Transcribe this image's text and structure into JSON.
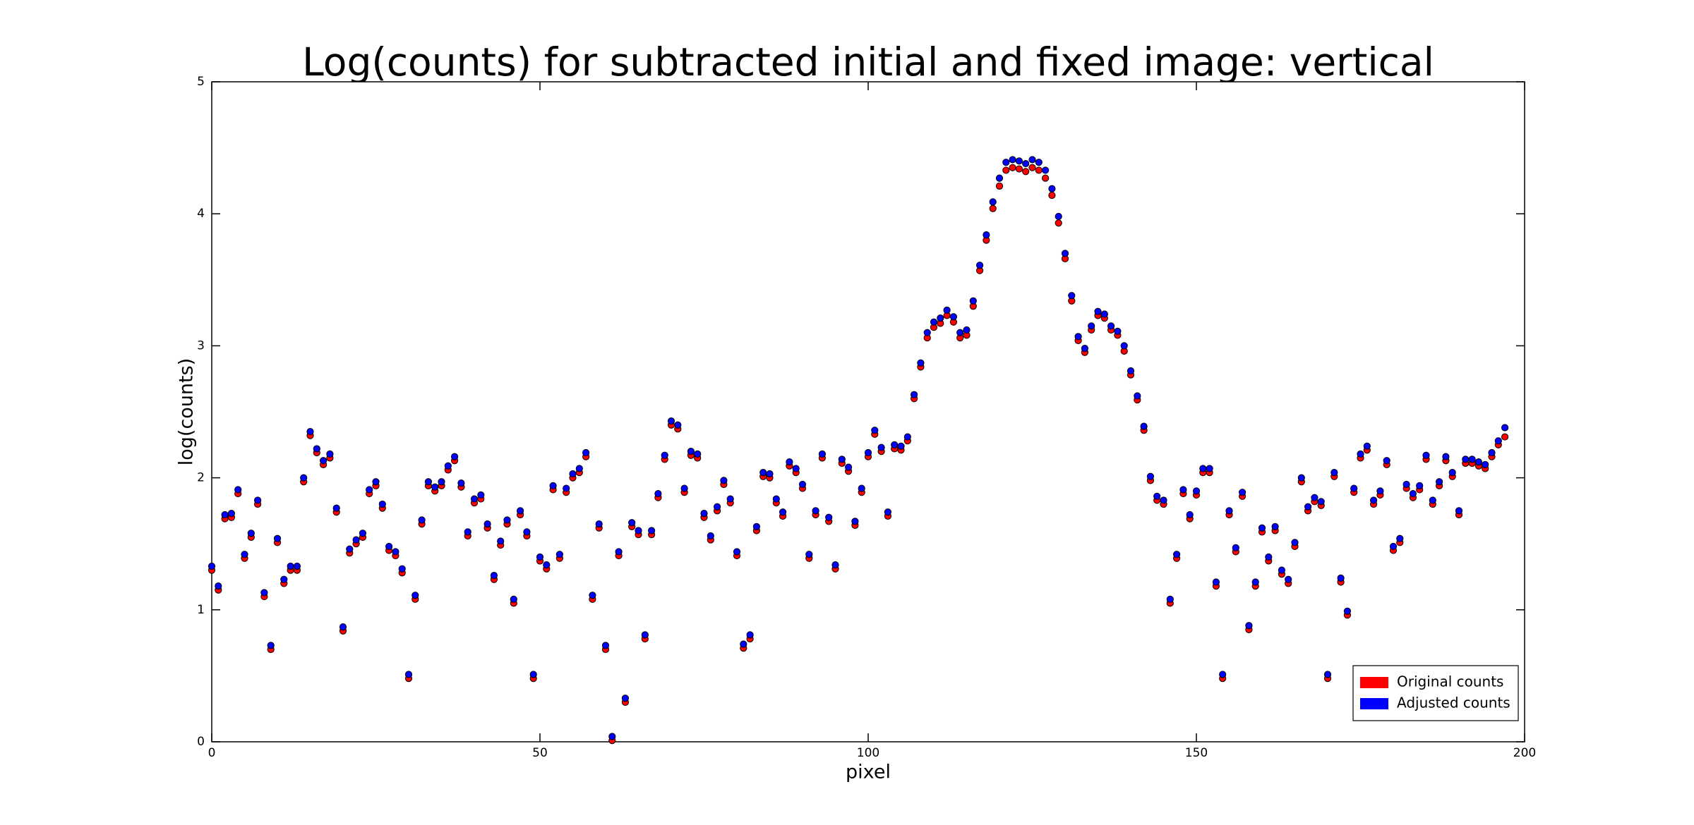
{
  "chart_data": {
    "type": "scatter",
    "title": "Log(counts) for subtracted initial and fixed image: vertical",
    "x_label": "pixel",
    "y_label": "log(counts)",
    "xlim": [
      0,
      200
    ],
    "xticks": [
      0,
      50,
      100,
      150,
      200
    ],
    "ylim": [
      0,
      5
    ],
    "yticks": [
      0,
      1,
      2,
      3,
      4,
      5
    ],
    "grid": false,
    "legend": "lower right",
    "x": [
      0,
      1,
      2,
      3,
      4,
      5,
      6,
      7,
      8,
      9,
      10,
      11,
      12,
      13,
      14,
      15,
      16,
      17,
      18,
      19,
      20,
      21,
      22,
      23,
      24,
      25,
      26,
      27,
      28,
      29,
      30,
      31,
      32,
      33,
      34,
      35,
      36,
      37,
      38,
      39,
      40,
      41,
      42,
      43,
      44,
      45,
      46,
      47,
      48,
      49,
      50,
      51,
      52,
      53,
      54,
      55,
      56,
      57,
      58,
      59,
      60,
      61,
      62,
      63,
      64,
      65,
      66,
      67,
      68,
      69,
      70,
      71,
      72,
      73,
      74,
      75,
      76,
      77,
      78,
      79,
      80,
      81,
      82,
      83,
      84,
      85,
      86,
      87,
      88,
      89,
      90,
      91,
      92,
      93,
      94,
      95,
      96,
      97,
      98,
      99,
      100,
      101,
      102,
      103,
      104,
      105,
      106,
      107,
      108,
      109,
      110,
      111,
      112,
      113,
      114,
      115,
      116,
      117,
      118,
      119,
      120,
      121,
      122,
      123,
      124,
      125,
      126,
      127,
      128,
      129,
      130,
      131,
      132,
      133,
      134,
      135,
      136,
      137,
      138,
      139,
      140,
      141,
      142,
      143,
      144,
      145,
      146,
      147,
      148,
      149,
      150,
      151,
      152,
      153,
      154,
      155,
      156,
      157,
      158,
      159,
      160,
      161,
      162,
      163,
      164,
      165,
      166,
      167,
      168,
      169,
      170,
      171,
      172,
      173,
      174,
      175,
      176,
      177,
      178,
      179,
      180,
      181,
      182,
      183,
      184,
      185,
      186,
      187,
      188,
      189,
      190,
      191,
      192,
      193,
      194,
      195,
      196,
      197
    ],
    "series": [
      {
        "name": "Original counts",
        "color": "#ff0000",
        "values": [
          1.3,
          1.15,
          1.69,
          1.7,
          1.88,
          1.39,
          1.55,
          1.8,
          1.1,
          0.7,
          1.51,
          1.2,
          1.3,
          1.3,
          1.97,
          2.32,
          2.19,
          2.1,
          2.15,
          1.74,
          0.84,
          1.43,
          1.5,
          1.55,
          1.88,
          1.94,
          1.77,
          1.45,
          1.41,
          1.28,
          0.48,
          1.08,
          1.65,
          1.94,
          1.9,
          1.94,
          2.06,
          2.13,
          1.93,
          1.56,
          1.81,
          1.84,
          1.62,
          1.23,
          1.49,
          1.65,
          1.05,
          1.72,
          1.56,
          0.48,
          1.37,
          1.31,
          1.91,
          1.39,
          1.89,
          2.0,
          2.04,
          2.16,
          1.08,
          1.62,
          0.7,
          0.01,
          1.41,
          0.3,
          1.63,
          1.57,
          0.78,
          1.57,
          1.85,
          2.14,
          2.4,
          2.37,
          1.89,
          2.17,
          2.15,
          1.7,
          1.53,
          1.75,
          1.95,
          1.81,
          1.41,
          0.71,
          0.78,
          1.6,
          2.01,
          2.0,
          1.81,
          1.71,
          2.09,
          2.04,
          1.92,
          1.39,
          1.72,
          2.15,
          1.67,
          1.31,
          2.11,
          2.05,
          1.64,
          1.89,
          2.16,
          2.33,
          2.2,
          1.71,
          2.22,
          2.21,
          2.28,
          2.6,
          2.84,
          3.06,
          3.14,
          3.17,
          3.23,
          3.18,
          3.06,
          3.08,
          3.3,
          3.57,
          3.8,
          4.04,
          4.21,
          4.33,
          4.35,
          4.34,
          4.32,
          4.35,
          4.33,
          4.27,
          4.14,
          3.93,
          3.66,
          3.34,
          3.04,
          2.95,
          3.12,
          3.23,
          3.21,
          3.12,
          3.08,
          2.96,
          2.78,
          2.59,
          2.36,
          1.98,
          1.83,
          1.8,
          1.05,
          1.39,
          1.88,
          1.69,
          1.87,
          2.04,
          2.04,
          1.18,
          0.48,
          1.72,
          1.44,
          1.86,
          0.85,
          1.18,
          1.59,
          1.37,
          1.6,
          1.27,
          1.2,
          1.48,
          1.97,
          1.75,
          1.82,
          1.79,
          0.48,
          2.01,
          1.21,
          0.96,
          1.89,
          2.15,
          2.21,
          1.8,
          1.87,
          2.1,
          1.45,
          1.51,
          1.92,
          1.85,
          1.91,
          2.14,
          1.8,
          1.94,
          2.13,
          2.01,
          1.72,
          2.11,
          2.11,
          2.09,
          2.07,
          2.16,
          2.25,
          2.31
        ]
      },
      {
        "name": "Adjusted counts",
        "color": "#0000ff",
        "values": [
          1.33,
          1.18,
          1.72,
          1.73,
          1.91,
          1.42,
          1.58,
          1.83,
          1.13,
          0.73,
          1.54,
          1.23,
          1.33,
          1.33,
          2.0,
          2.35,
          2.22,
          2.13,
          2.18,
          1.77,
          0.87,
          1.46,
          1.53,
          1.58,
          1.91,
          1.97,
          1.8,
          1.48,
          1.44,
          1.31,
          0.51,
          1.11,
          1.68,
          1.97,
          1.93,
          1.97,
          2.09,
          2.16,
          1.96,
          1.59,
          1.84,
          1.87,
          1.65,
          1.26,
          1.52,
          1.68,
          1.08,
          1.75,
          1.59,
          0.51,
          1.4,
          1.34,
          1.94,
          1.42,
          1.92,
          2.03,
          2.07,
          2.19,
          1.11,
          1.65,
          0.73,
          0.04,
          1.44,
          0.33,
          1.66,
          1.6,
          0.81,
          1.6,
          1.88,
          2.17,
          2.43,
          2.4,
          1.92,
          2.2,
          2.18,
          1.73,
          1.56,
          1.78,
          1.98,
          1.84,
          1.44,
          0.74,
          0.81,
          1.63,
          2.04,
          2.03,
          1.84,
          1.74,
          2.12,
          2.07,
          1.95,
          1.42,
          1.75,
          2.18,
          1.7,
          1.34,
          2.14,
          2.08,
          1.67,
          1.92,
          2.19,
          2.36,
          2.23,
          1.74,
          2.25,
          2.24,
          2.31,
          2.63,
          2.87,
          3.1,
          3.18,
          3.21,
          3.27,
          3.22,
          3.1,
          3.12,
          3.34,
          3.61,
          3.84,
          4.09,
          4.27,
          4.39,
          4.41,
          4.4,
          4.38,
          4.41,
          4.39,
          4.33,
          4.19,
          3.98,
          3.7,
          3.38,
          3.07,
          2.98,
          3.15,
          3.26,
          3.24,
          3.15,
          3.11,
          3.0,
          2.81,
          2.62,
          2.39,
          2.01,
          1.86,
          1.83,
          1.08,
          1.42,
          1.91,
          1.72,
          1.9,
          2.07,
          2.07,
          1.21,
          0.51,
          1.75,
          1.47,
          1.89,
          0.88,
          1.21,
          1.62,
          1.4,
          1.63,
          1.3,
          1.23,
          1.51,
          2.0,
          1.78,
          1.85,
          1.82,
          0.51,
          2.04,
          1.24,
          0.99,
          1.92,
          2.18,
          2.24,
          1.83,
          1.9,
          2.13,
          1.48,
          1.54,
          1.95,
          1.88,
          1.94,
          2.17,
          1.83,
          1.97,
          2.16,
          2.04,
          1.75,
          2.14,
          2.14,
          2.12,
          2.1,
          2.19,
          2.28,
          2.38
        ]
      }
    ]
  }
}
